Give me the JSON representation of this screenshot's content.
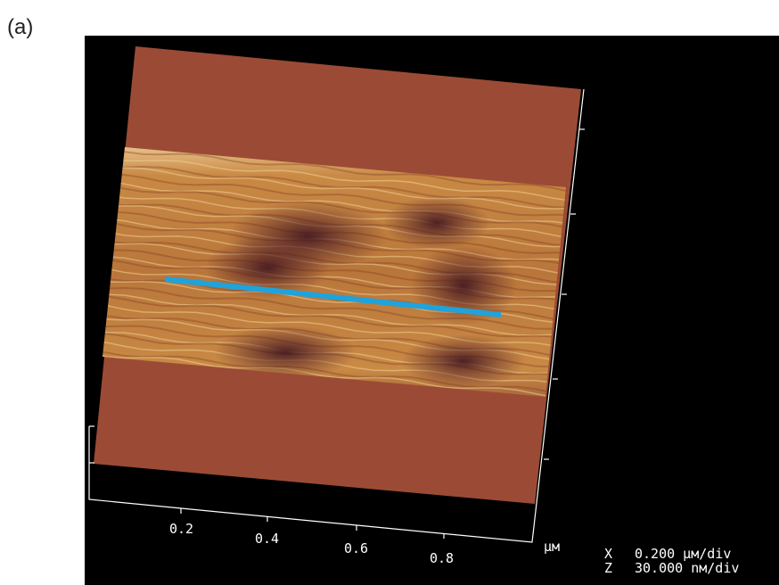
{
  "label": "(a)",
  "axis": {
    "ticks": [
      "0.2",
      "0.4",
      "0.6",
      "0.8"
    ],
    "unit": "µм"
  },
  "scale": {
    "x": {
      "axis": "X",
      "value": "0.200 µм/div"
    },
    "z": {
      "axis": "Z",
      "value": "30.000 nм/div"
    }
  }
}
